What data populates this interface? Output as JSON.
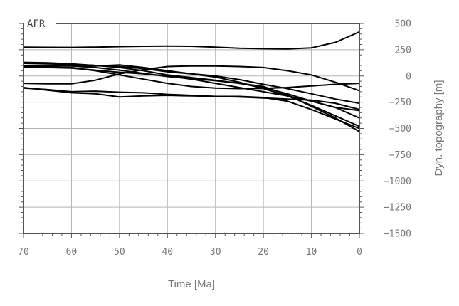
{
  "chart_data": {
    "type": "line",
    "region_label": "AFR",
    "xlabel": "Time [Ma]",
    "ylabel": "Dyn. topography [m]",
    "xlim": [
      70,
      0
    ],
    "ylim": [
      -1500,
      500
    ],
    "x_ticks": [
      70,
      60,
      50,
      40,
      30,
      20,
      10,
      0
    ],
    "x_tick_labels": [
      "70",
      "60",
      "50",
      "40",
      "30",
      "20",
      "10",
      "0"
    ],
    "y_ticks": [
      500,
      250,
      0,
      -250,
      -500,
      -750,
      -1000,
      -1250,
      -1500
    ],
    "y_tick_labels": [
      "500",
      "250",
      "0",
      "−250",
      "−500",
      "−750",
      "−1000",
      "−1250",
      "−1500"
    ],
    "grid": true,
    "x": [
      70,
      65,
      60,
      55,
      50,
      45,
      40,
      35,
      30,
      25,
      20,
      15,
      10,
      5,
      0
    ],
    "series": [
      {
        "values": [
          275,
          273,
          272,
          275,
          280,
          283,
          285,
          283,
          275,
          265,
          260,
          258,
          268,
          320,
          420
        ]
      },
      {
        "values": [
          130,
          125,
          115,
          100,
          80,
          50,
          10,
          -15,
          -40,
          -70,
          -110,
          -170,
          -240,
          -300,
          -330
        ]
      },
      {
        "values": [
          120,
          115,
          110,
          100,
          90,
          70,
          40,
          20,
          0,
          -35,
          -80,
          -120,
          -170,
          -220,
          -260
        ]
      },
      {
        "values": [
          90,
          95,
          100,
          95,
          105,
          80,
          50,
          20,
          -10,
          -60,
          -120,
          -190,
          -280,
          -380,
          -480
        ]
      },
      {
        "values": [
          80,
          80,
          75,
          55,
          35,
          20,
          0,
          -30,
          -70,
          -110,
          -150,
          -190,
          -240,
          -300,
          -400
        ]
      },
      {
        "values": [
          -70,
          -75,
          -75,
          -40,
          20,
          60,
          90,
          95,
          95,
          90,
          80,
          50,
          10,
          -60,
          -140
        ]
      },
      {
        "values": [
          -110,
          -135,
          -160,
          -170,
          -200,
          -190,
          -185,
          -190,
          -195,
          -200,
          -210,
          -220,
          -230,
          -260,
          -320
        ]
      },
      {
        "values": [
          -115,
          -130,
          -150,
          -145,
          -155,
          -160,
          -175,
          -185,
          -195,
          -195,
          -205,
          -240,
          -320,
          -410,
          -500
        ]
      },
      {
        "values": [
          80,
          85,
          80,
          50,
          10,
          -30,
          -70,
          -100,
          -115,
          -120,
          -118,
          -110,
          -95,
          -80,
          -70
        ]
      },
      {
        "values": [
          100,
          100,
          95,
          80,
          55,
          25,
          -5,
          -25,
          -45,
          -70,
          -100,
          -180,
          -290,
          -400,
          -530
        ]
      }
    ],
    "line_color": "#000000",
    "grid_color": "#b4b4b4",
    "axis_color": "#555555"
  }
}
